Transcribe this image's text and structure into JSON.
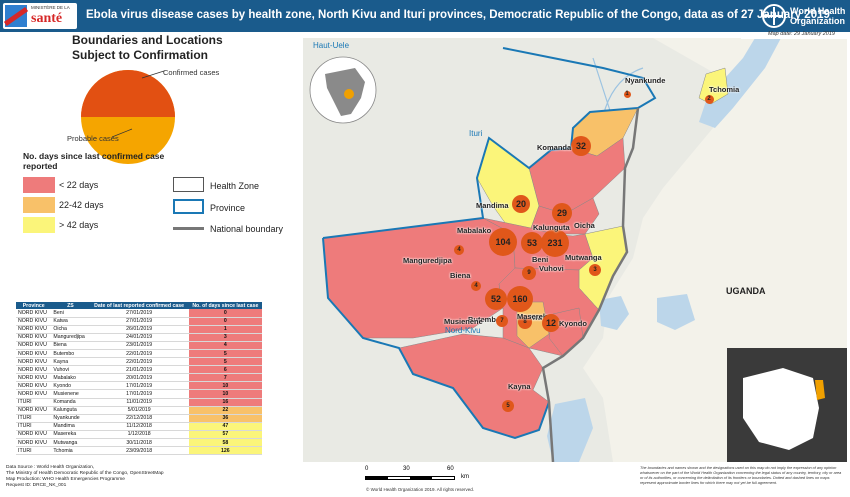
{
  "header": {
    "title": "Ebola virus disease cases by health zone, North Kivu and Ituri provinces, Democratic Republic of the Congo, data as of 27 January 2019",
    "moh_small": "MINISTÈRE DE LA",
    "moh_big": "santé",
    "who_name": "World Health Organization"
  },
  "map_date": "Map date: 29 January 2019",
  "legend": {
    "title_line1": "Boundaries and Locations",
    "title_line2": "Subject to Confirmation",
    "pie_confirmed": "Confirmed cases",
    "pie_probable": "Probable cases",
    "days_title": "No. days since last confirmed case reported",
    "cat1": "< 22 days",
    "cat2": "22-42 days",
    "cat3": "> 42 days",
    "health_zone": "Health Zone",
    "province": "Province",
    "national": "National boundary",
    "colors": {
      "lt22": "#ee7b7b",
      "d22_42": "#f8c169",
      "gt42": "#fbf57a",
      "pie_conf": "#e25012",
      "pie_prob": "#f5a500",
      "province": "#1a78b5",
      "bubble": "#e0571a"
    }
  },
  "table": {
    "headers": [
      "Province",
      "ZS",
      "Date of last reported confirmed case",
      "No. of days since last case"
    ],
    "rows": [
      [
        "NORD KIVU",
        "Beni",
        "27/01/2019",
        "0"
      ],
      [
        "NORD KIVU",
        "Katwa",
        "27/01/2019",
        "0"
      ],
      [
        "NORD KIVU",
        "Oicha",
        "26/01/2019",
        "1"
      ],
      [
        "NORD KIVU",
        "Manguredjipa",
        "24/01/2019",
        "3"
      ],
      [
        "NORD KIVU",
        "Biena",
        "23/01/2019",
        "4"
      ],
      [
        "NORD KIVU",
        "Butembo",
        "22/01/2019",
        "5"
      ],
      [
        "NORD KIVU",
        "Kayna",
        "22/01/2019",
        "5"
      ],
      [
        "NORD KIVU",
        "Vuhovi",
        "21/01/2019",
        "6"
      ],
      [
        "NORD KIVU",
        "Mabalako",
        "20/01/2019",
        "7"
      ],
      [
        "NORD KIVU",
        "Kyondo",
        "17/01/2019",
        "10"
      ],
      [
        "NORD KIVU",
        "Musienene",
        "17/01/2019",
        "10"
      ],
      [
        "ITURI",
        "Komanda",
        "11/01/2019",
        "16"
      ],
      [
        "NORD KIVU",
        "Kalunguta",
        "5/01/2019",
        "22"
      ],
      [
        "ITURI",
        "Nyankunde",
        "22/12/2018",
        "36"
      ],
      [
        "ITURI",
        "Mandima",
        "11/12/2018",
        "47"
      ],
      [
        "NORD KIVU",
        "Masereka",
        "1/12/2018",
        "57"
      ],
      [
        "NORD KIVU",
        "Mutwanga",
        "30/11/2018",
        "58"
      ],
      [
        "ITURI",
        "Tchomia",
        "23/09/2018",
        "126"
      ]
    ]
  },
  "map": {
    "country_label": "UGANDA",
    "region_labels": [
      "Haut-Uele",
      "Ituri",
      "Nord-Kivu"
    ],
    "zones": [
      {
        "name": "Nyankunde",
        "count": "1"
      },
      {
        "name": "Tchomia",
        "count": "2"
      },
      {
        "name": "Komanda",
        "count": "32"
      },
      {
        "name": "Mandima",
        "count": "20"
      },
      {
        "name": "Oicha",
        "count": "29"
      },
      {
        "name": "Kalunguta",
        "count": "231"
      },
      {
        "name": "Mabalako",
        "count": "104"
      },
      {
        "name": "Beni",
        "count": "53"
      },
      {
        "name": "Mutwanga",
        "count": "3"
      },
      {
        "name": "Manguredjipa",
        "count": "4"
      },
      {
        "name": "Vuhovi",
        "count": "9"
      },
      {
        "name": "Biena",
        "count": "4"
      },
      {
        "name": "Katwa",
        "count": "160"
      },
      {
        "name": "Butembo",
        "count": "52"
      },
      {
        "name": "Masereka",
        "count": "8"
      },
      {
        "name": "Musienene",
        "count": "7"
      },
      {
        "name": "Kyondo",
        "count": "12"
      },
      {
        "name": "Kayna",
        "count": "5"
      }
    ]
  },
  "footer": {
    "source1": "Data Source : World Health Organization,",
    "source2": "The Ministry of Health Democratic Republic of the Congo, OpenStreetMap",
    "source3": "Map Production: WHO Health Emergencies Programme",
    "source4": "Request ID: DRCE_NK_001",
    "scale_0": "0",
    "scale_30": "30",
    "scale_60": "60",
    "scale_unit": "km",
    "copyright": "© World Health Organization 2019. All rights reserved.",
    "disclaimer": "The boundaries and names shown and the designations used on this map do not imply the expression of any opinion whatsoever on the part of the World Health Organization concerning the legal status of any country, territory, city or area or of its authorities, or concerning the delimitation of its frontiers or boundaries. Dotted and dashed lines on maps represent approximate border lines for which there may not yet be full agreement."
  }
}
